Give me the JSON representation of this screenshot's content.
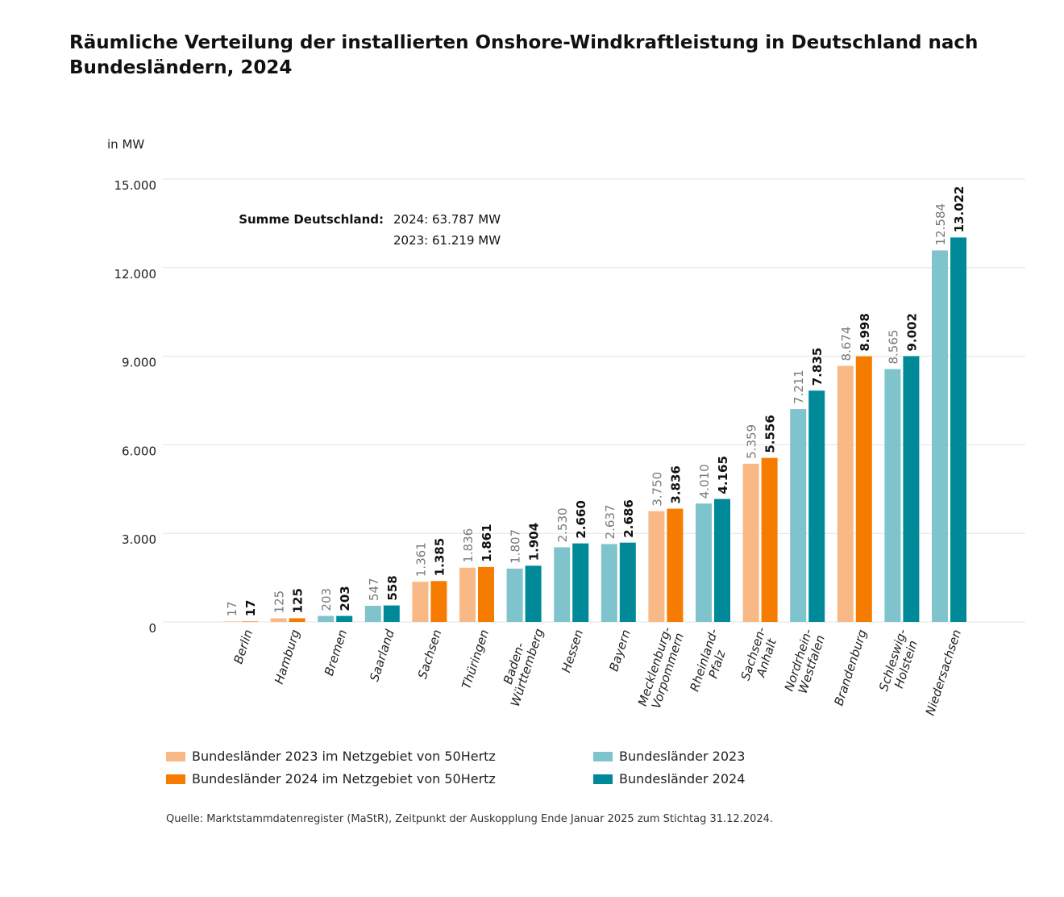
{
  "title": "Räumliche Verteilung der installierten Onshore-Windkraftleistung in Deutschland nach Bundesländern, 2024",
  "source": "Quelle: Marktstammdatenregister (MaStR), Zeitpunkt der Auskopplung Ende Januar 2025 zum Stichtag 31.12.2024.",
  "colors": {
    "fh2023": "#f9b987",
    "fh2024": "#f57c00",
    "bl2023": "#7fc4cc",
    "bl2024": "#008a99",
    "grid": "#e3e3e3",
    "label2023": "#7a7a7a",
    "label2024": "#111111"
  },
  "summary": {
    "label": "Summe Deutschland:",
    "line2024": "2024: 63.787 MW",
    "line2023": "2023: 61.219 MW"
  },
  "legend": {
    "fh2023": "Bundesländer 2023 im Netzgebiet von 50Hertz",
    "fh2024": "Bundesländer 2024 im Netzgebiet von 50Hertz",
    "bl2023": "Bundesländer 2023",
    "bl2024": "Bundesländer 2024"
  },
  "chart_data": {
    "type": "bar",
    "ylabel": "in MW",
    "ylim": [
      0,
      15000
    ],
    "yticks": [
      0,
      3000,
      6000,
      9000,
      12000,
      15000
    ],
    "ytick_labels": [
      "0",
      "3.000",
      "6.000",
      "9.000",
      "12.000",
      "15.000"
    ],
    "grid": true,
    "categories": [
      {
        "lines": [
          "Berlin"
        ],
        "group": "50Hertz"
      },
      {
        "lines": [
          "Hamburg"
        ],
        "group": "50Hertz"
      },
      {
        "lines": [
          "Bremen"
        ],
        "group": "other"
      },
      {
        "lines": [
          "Saarland"
        ],
        "group": "other"
      },
      {
        "lines": [
          "Sachsen"
        ],
        "group": "50Hertz"
      },
      {
        "lines": [
          "Thüringen"
        ],
        "group": "50Hertz"
      },
      {
        "lines": [
          "Baden-",
          "Württemberg"
        ],
        "group": "other"
      },
      {
        "lines": [
          "Hessen"
        ],
        "group": "other"
      },
      {
        "lines": [
          "Bayern"
        ],
        "group": "other"
      },
      {
        "lines": [
          "Mecklenburg-",
          "Vorpommern"
        ],
        "group": "50Hertz"
      },
      {
        "lines": [
          "Rheinland-",
          "Pfalz"
        ],
        "group": "other"
      },
      {
        "lines": [
          "Sachsen-",
          "Anhalt"
        ],
        "group": "50Hertz"
      },
      {
        "lines": [
          "Nordrhein-",
          "Westfalen"
        ],
        "group": "other"
      },
      {
        "lines": [
          "Brandenburg"
        ],
        "group": "50Hertz"
      },
      {
        "lines": [
          "Schleswig-",
          "Holstein"
        ],
        "group": "other"
      },
      {
        "lines": [
          "Niedersachsen"
        ],
        "group": "other"
      }
    ],
    "series": [
      {
        "year": "2023",
        "values": [
          17,
          125,
          203,
          547,
          1361,
          1836,
          1807,
          2530,
          2637,
          3750,
          4010,
          5359,
          7211,
          8674,
          8565,
          12584
        ],
        "labels": [
          "17",
          "125",
          "203",
          "547",
          "1.361",
          "1.836",
          "1.807",
          "2.530",
          "2.637",
          "3.750",
          "4.010",
          "5.359",
          "7.211",
          "8.674",
          "8.565",
          "12.584"
        ]
      },
      {
        "year": "2024",
        "values": [
          17,
          125,
          203,
          558,
          1385,
          1861,
          1904,
          2660,
          2686,
          3836,
          4165,
          5556,
          7835,
          8998,
          9002,
          13022
        ],
        "labels": [
          "17",
          "125",
          "203",
          "558",
          "1.385",
          "1.861",
          "1.904",
          "2.660",
          "2.686",
          "3.836",
          "4.165",
          "5.556",
          "7.835",
          "8.998",
          "9.002",
          "13.022"
        ]
      }
    ]
  }
}
